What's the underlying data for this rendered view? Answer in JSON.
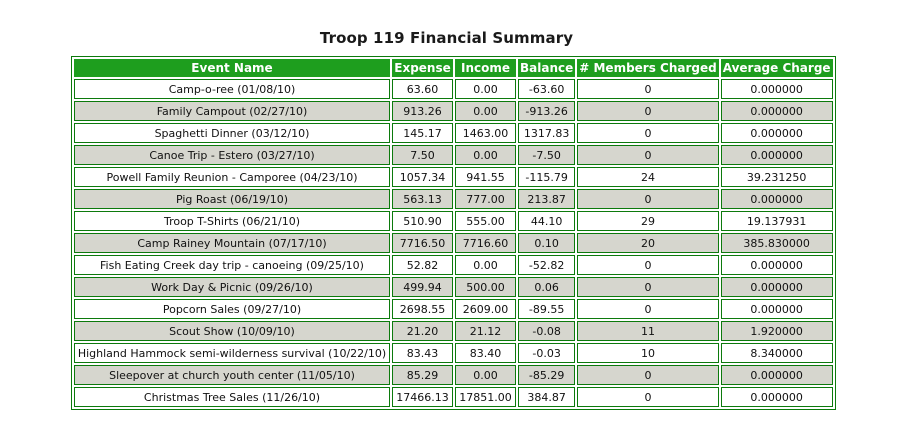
{
  "page": {
    "title": "Troop 119 Financial Summary"
  },
  "table": {
    "headers": {
      "event_name": "Event Name",
      "expense": "Expense",
      "income": "Income",
      "balance": "Balance",
      "members_charged": "# Members Charged",
      "average_charge": "Average Charge"
    },
    "rows": [
      {
        "event_name": "Camp-o-ree (01/08/10)",
        "expense": "63.60",
        "income": "0.00",
        "balance": "-63.60",
        "members_charged": "0",
        "average_charge": "0.000000"
      },
      {
        "event_name": "Family Campout (02/27/10)",
        "expense": "913.26",
        "income": "0.00",
        "balance": "-913.26",
        "members_charged": "0",
        "average_charge": "0.000000"
      },
      {
        "event_name": "Spaghetti Dinner (03/12/10)",
        "expense": "145.17",
        "income": "1463.00",
        "balance": "1317.83",
        "members_charged": "0",
        "average_charge": "0.000000"
      },
      {
        "event_name": "Canoe Trip - Estero (03/27/10)",
        "expense": "7.50",
        "income": "0.00",
        "balance": "-7.50",
        "members_charged": "0",
        "average_charge": "0.000000"
      },
      {
        "event_name": "Powell Family Reunion - Camporee (04/23/10)",
        "expense": "1057.34",
        "income": "941.55",
        "balance": "-115.79",
        "members_charged": "24",
        "average_charge": "39.231250"
      },
      {
        "event_name": "Pig Roast (06/19/10)",
        "expense": "563.13",
        "income": "777.00",
        "balance": "213.87",
        "members_charged": "0",
        "average_charge": "0.000000"
      },
      {
        "event_name": "Troop T-Shirts (06/21/10)",
        "expense": "510.90",
        "income": "555.00",
        "balance": "44.10",
        "members_charged": "29",
        "average_charge": "19.137931"
      },
      {
        "event_name": "Camp Rainey Mountain (07/17/10)",
        "expense": "7716.50",
        "income": "7716.60",
        "balance": "0.10",
        "members_charged": "20",
        "average_charge": "385.830000"
      },
      {
        "event_name": "Fish Eating Creek day trip - canoeing (09/25/10)",
        "expense": "52.82",
        "income": "0.00",
        "balance": "-52.82",
        "members_charged": "0",
        "average_charge": "0.000000"
      },
      {
        "event_name": "Work Day & Picnic (09/26/10)",
        "expense": "499.94",
        "income": "500.00",
        "balance": "0.06",
        "members_charged": "0",
        "average_charge": "0.000000"
      },
      {
        "event_name": "Popcorn Sales (09/27/10)",
        "expense": "2698.55",
        "income": "2609.00",
        "balance": "-89.55",
        "members_charged": "0",
        "average_charge": "0.000000"
      },
      {
        "event_name": "Scout Show (10/09/10)",
        "expense": "21.20",
        "income": "21.12",
        "balance": "-0.08",
        "members_charged": "11",
        "average_charge": "1.920000"
      },
      {
        "event_name": "Highland Hammock semi-wilderness survival (10/22/10)",
        "expense": "83.43",
        "income": "83.40",
        "balance": "-0.03",
        "members_charged": "10",
        "average_charge": "8.340000"
      },
      {
        "event_name": "Sleepover at church youth center (11/05/10)",
        "expense": "85.29",
        "income": "0.00",
        "balance": "-85.29",
        "members_charged": "0",
        "average_charge": "0.000000"
      },
      {
        "event_name": "Christmas Tree Sales (11/26/10)",
        "expense": "17466.13",
        "income": "17851.00",
        "balance": "384.87",
        "members_charged": "0",
        "average_charge": "0.000000"
      }
    ]
  },
  "colors": {
    "header_background": "#1e9e1e",
    "header_text": "#ffffff",
    "border": "#0c7a0c",
    "row_odd": "#ffffff",
    "row_even": "#d6d6ce"
  }
}
